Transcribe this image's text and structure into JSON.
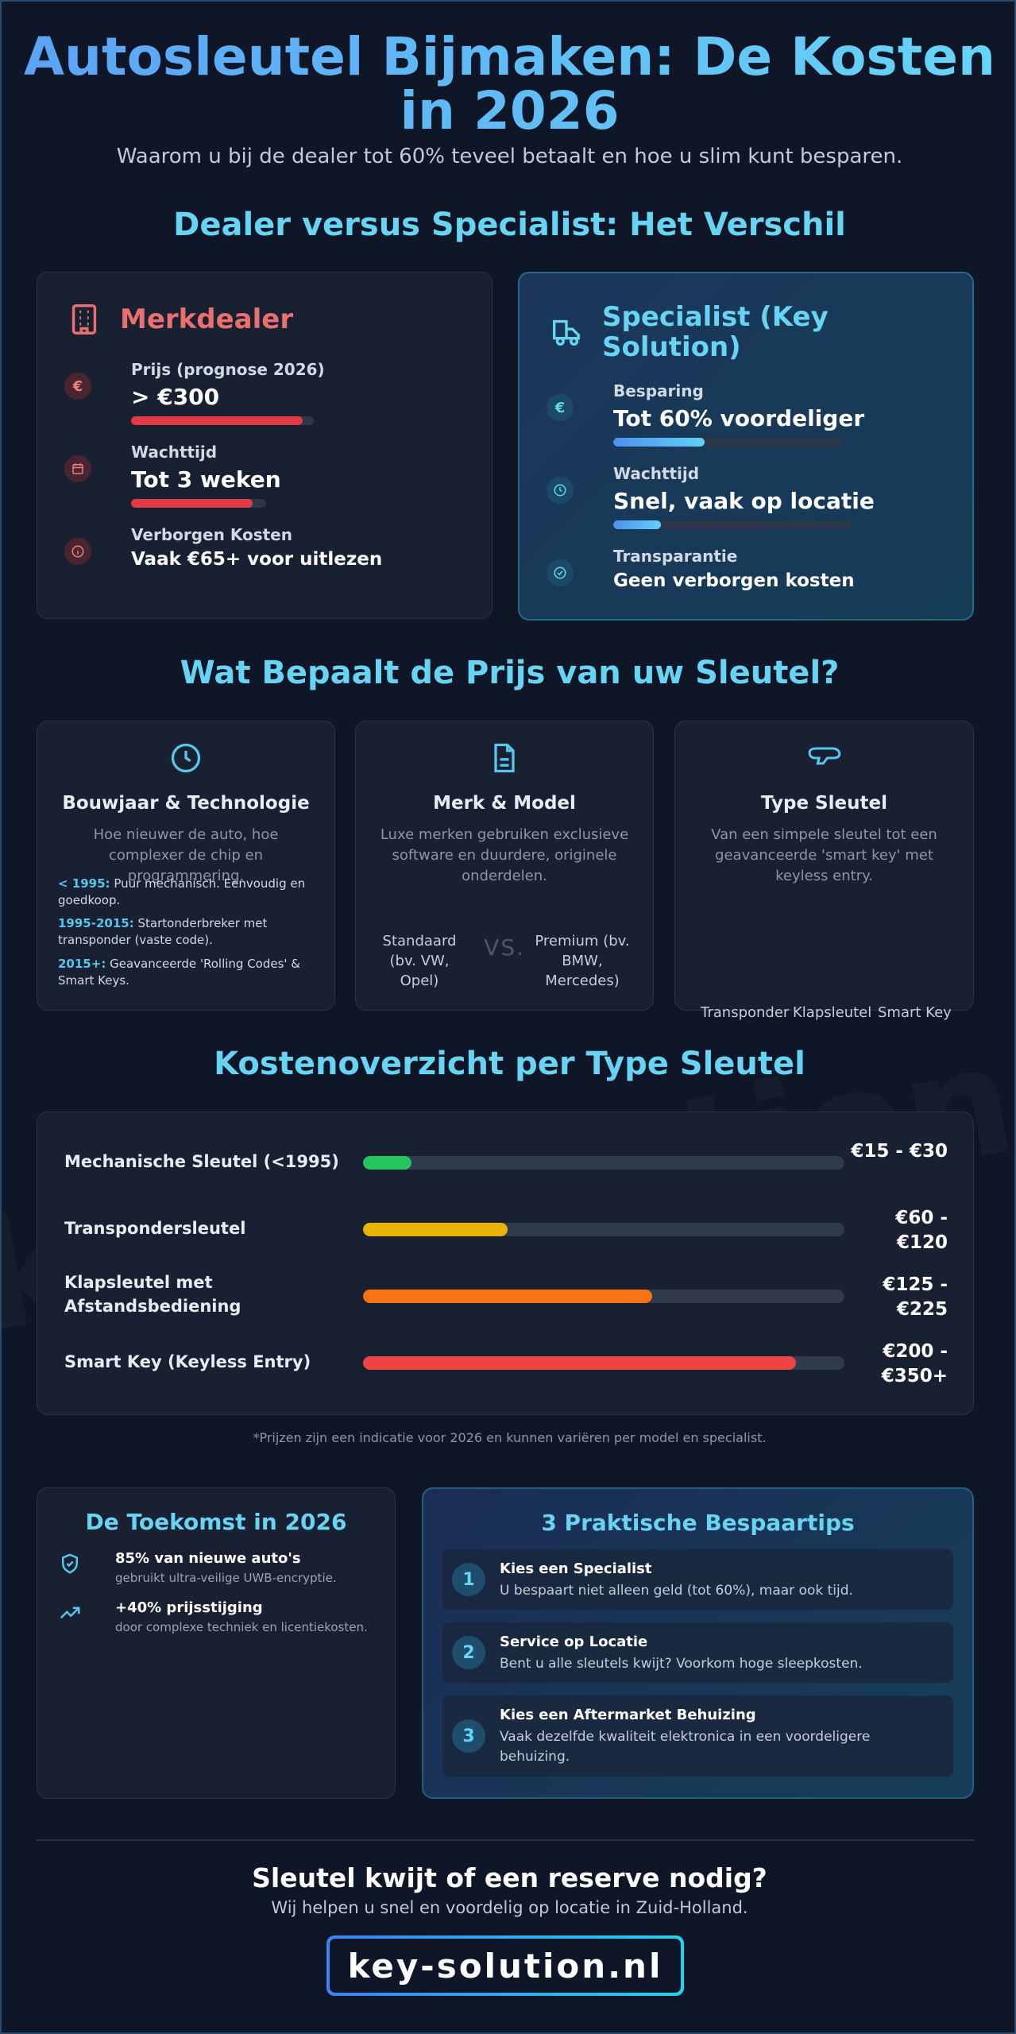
{
  "header": {
    "title_line1": "Autosleutel Bijmaken: De Kosten",
    "title_line2": "in 2026",
    "subtitle": "Waarom u bij de dealer tot 60% teveel betaalt en hoe u slim kunt besparen."
  },
  "comparison": {
    "section_title": "Dealer versus Specialist: Het Verschil",
    "dealer": {
      "title": "Merkdealer",
      "icon": "building-icon",
      "rows": [
        {
          "label": "Prijs (prognose 2026)",
          "value": "> €300",
          "icon": "euro-icon",
          "bar": 0.94
        },
        {
          "label": "Wachttijd",
          "value": "Tot 3 weken",
          "icon": "calendar-icon",
          "bar": 0.9
        },
        {
          "label": "Verborgen Kosten",
          "value": "Vaak €65+ voor uitlezen",
          "icon": "info-icon"
        }
      ]
    },
    "specialist": {
      "title": "Specialist (Key Solution)",
      "icon": "van-icon",
      "rows": [
        {
          "label": "Besparing",
          "value": "Tot 60% voordeliger",
          "icon": "euro-icon",
          "bar": 0.4
        },
        {
          "label": "Wachttijd",
          "value": "Snel, vaak op locatie",
          "icon": "clock-icon",
          "bar": 0.2
        },
        {
          "label": "Transparantie",
          "value": "Geen verborgen kosten",
          "icon": "check-circle-icon"
        }
      ]
    },
    "euro_symbol": "€"
  },
  "factors": {
    "section_title": "Wat Bepaalt de Prijs van uw Sleutel?",
    "year": {
      "title": "Bouwjaar & Technologie",
      "description": "Hoe nieuwer de auto, hoe complexer de chip en programmering.",
      "items": [
        {
          "key": "< 1995:",
          "text": "Puur mechanisch. Eenvoudig en goedkoop."
        },
        {
          "key": "1995-2015:",
          "text": "Startonderbreker met transponder (vaste code)."
        },
        {
          "key": "2015+:",
          "text": "Geavanceerde 'Rolling Codes' & Smart Keys."
        }
      ]
    },
    "brand": {
      "title": "Merk & Model",
      "description": "Luxe merken gebruiken exclusieve software en duurdere, originele onderdelen.",
      "standard": "Standaard (bv. VW, Opel)",
      "vs": "VS.",
      "premium": "Premium (bv. BMW, Mercedes)"
    },
    "keytype": {
      "title": "Type Sleutel",
      "description": "Van een simpele sleutel tot een geavanceerde 'smart key' met keyless entry.",
      "types": [
        "Transponder",
        "Klapsleutel",
        "Smart Key"
      ]
    }
  },
  "costs": {
    "section_title": "Kostenoverzicht per Type Sleutel",
    "rows": [
      {
        "label": "Mechanische Sleutel (<1995)",
        "price": "€15 - €30",
        "fill": 0.1,
        "color": "#22c55e"
      },
      {
        "label": "Transpondersleutel",
        "price": "€60 - €120",
        "fill": 0.3,
        "color": "#eab308"
      },
      {
        "label": "Klapsleutel met Afstandsbediening",
        "price": "€125 - €225",
        "fill": 0.6,
        "color": "#f97316"
      },
      {
        "label": "Smart Key (Keyless Entry)",
        "price": "€200 - €350+",
        "fill": 0.9,
        "color": "#ef4444"
      }
    ],
    "footnote": "*Prijzen zijn een indicatie voor 2026 en kunnen variëren per model en specialist."
  },
  "future": {
    "title": "De Toekomst in 2026",
    "stats": [
      {
        "title": "85% van nieuwe auto's",
        "desc": "gebruikt ultra-veilige UWB-encryptie.",
        "icon": "shield-check-icon"
      },
      {
        "title": "+40% prijsstijging",
        "desc": "door complexe techniek en licentiekosten.",
        "icon": "trending-up-icon"
      }
    ]
  },
  "tips": {
    "title": "3 Praktische Bespaartips",
    "items": [
      {
        "num": "1",
        "title": "Kies een Specialist",
        "desc": "U bespaart niet alleen geld (tot 60%), maar ook tijd."
      },
      {
        "num": "2",
        "title": "Service op Locatie",
        "desc": "Bent u alle sleutels kwijt? Voorkom hoge sleepkosten."
      },
      {
        "num": "3",
        "title": "Kies een Aftermarket Behuizing",
        "desc": "Vaak dezelfde kwaliteit elektronica in een voordeligere behuizing."
      }
    ]
  },
  "cta": {
    "title": "Sleutel kwijt of een reserve nodig?",
    "subtitle": "Wij helpen u snel en voordelig op locatie in Zuid-Holland.",
    "domain": "key-solution.nl",
    "watermark": "key-solution.nl"
  }
}
